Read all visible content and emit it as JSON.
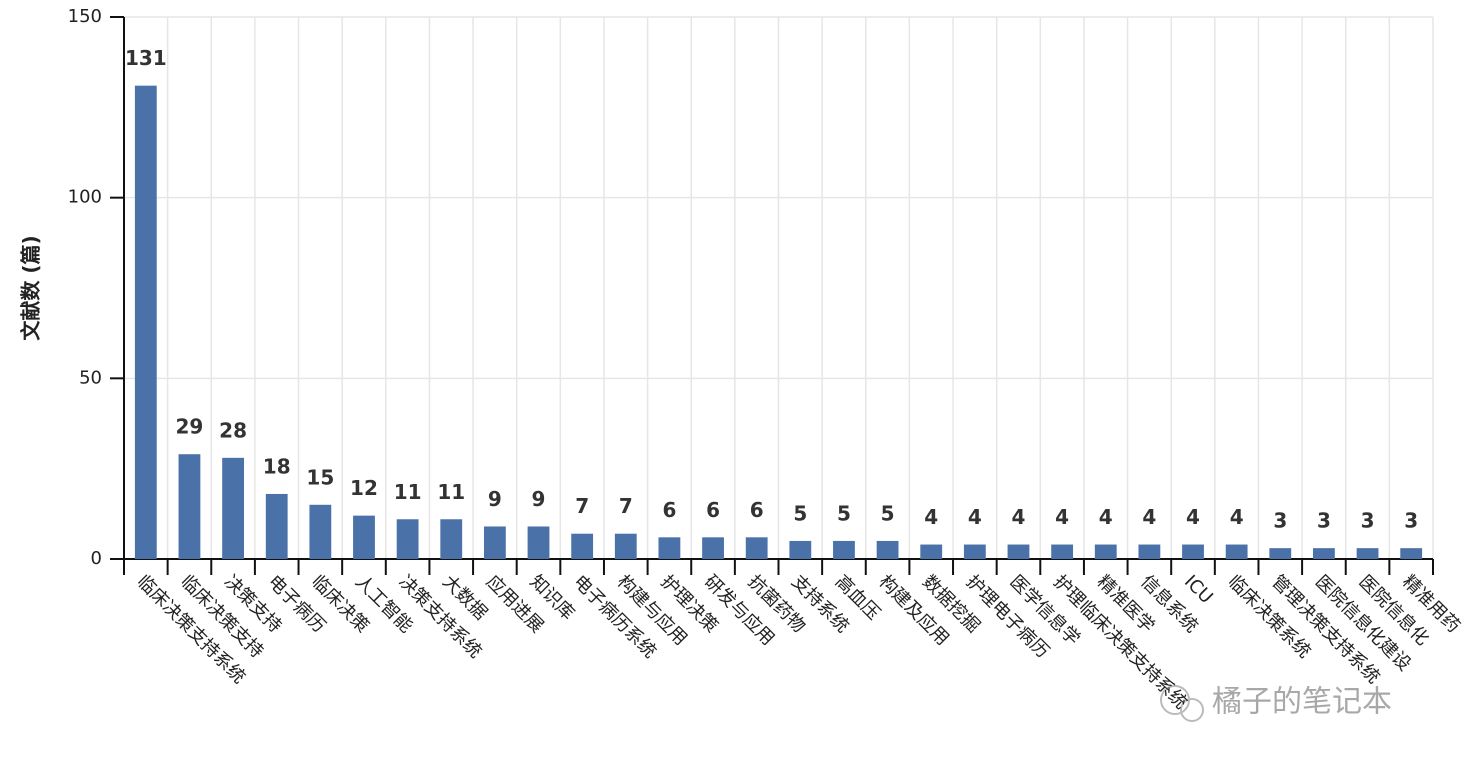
{
  "chart_data": {
    "type": "bar",
    "y_label": "文献数 (篇)",
    "annotation": "橘子的笔记本",
    "categories": [
      "临床决策支持系统",
      "临床决策支持",
      "决策支持",
      "电子病历",
      "临床决策",
      "人工智能",
      "决策支持系统",
      "大数据",
      "应用进展",
      "知识库",
      "电子病历系统",
      "构建与应用",
      "护理决策",
      "研发与应用",
      "抗菌药物",
      "支持系统",
      "高血压",
      "构建及应用",
      "数据挖掘",
      "护理电子病历",
      "医学信息学",
      "护理临床决策支持系统",
      "精准医学",
      "信息系统",
      "ICU",
      "临床决策系统",
      "管理决策支持系统",
      "医院信息化建设",
      "医院信息化",
      "精准用药"
    ],
    "values": [
      131,
      29,
      28,
      18,
      15,
      12,
      11,
      11,
      9,
      9,
      7,
      7,
      6,
      6,
      6,
      5,
      5,
      5,
      4,
      4,
      4,
      4,
      4,
      4,
      4,
      4,
      3,
      3,
      3,
      3
    ],
    "color": "#4a72a8",
    "ylim": [
      0,
      150
    ],
    "yticks": [
      0,
      50,
      100,
      150
    ],
    "grid": true
  }
}
